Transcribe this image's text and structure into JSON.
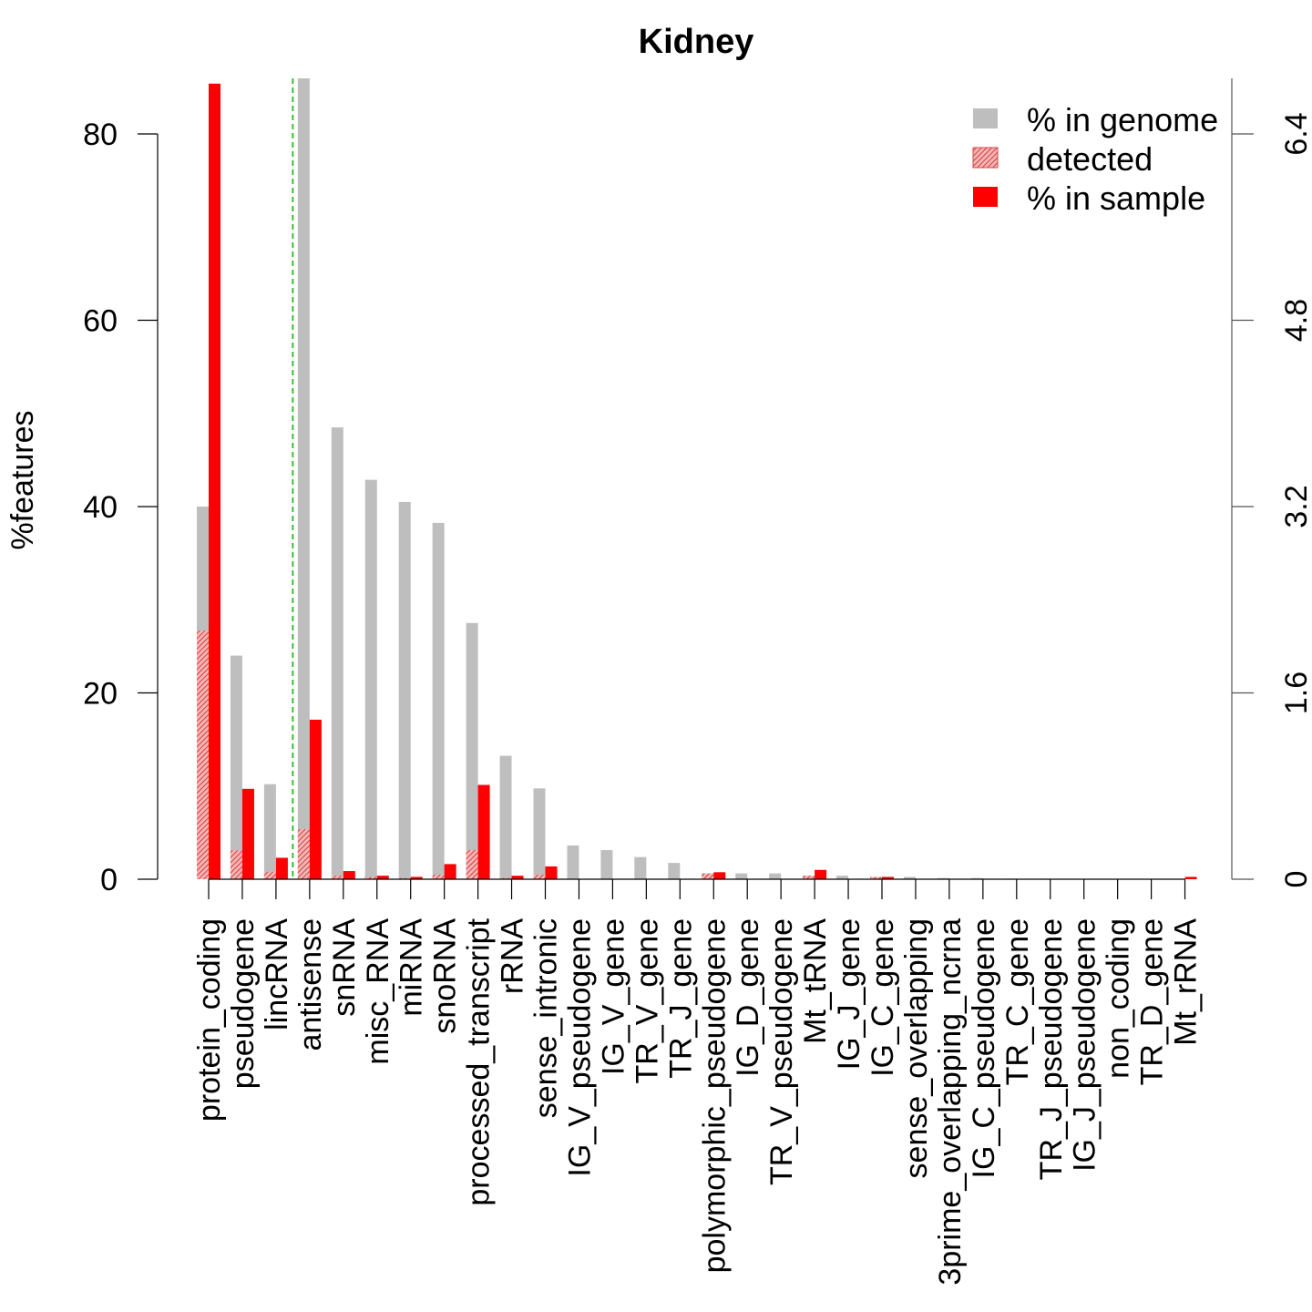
{
  "chart_data": {
    "type": "bar",
    "title": "Kidney",
    "ylabel": "%features",
    "left_axis": {
      "ylim": [
        0,
        86
      ],
      "ticks": [
        0,
        20,
        40,
        60,
        80
      ]
    },
    "right_axis": {
      "ylim": [
        0,
        6.88
      ],
      "ticks": [
        "0",
        "1.6",
        "3.2",
        "4.8",
        "6.4"
      ]
    },
    "categories": [
      "protein_coding",
      "pseudogene",
      "lincRNA",
      "antisense",
      "snRNA",
      "misc_RNA",
      "miRNA",
      "snoRNA",
      "processed_transcript",
      "rRNA",
      "sense_intronic",
      "IG_V_pseudogene",
      "IG_V_gene",
      "TR_V_gene",
      "TR_J_gene",
      "polymorphic_pseudogene",
      "IG_D_gene",
      "TR_V_pseudogene",
      "Mt_tRNA",
      "IG_J_gene",
      "IG_C_gene",
      "sense_overlapping",
      "3prime_overlapping_ncrna",
      "IG_C_pseudogene",
      "TR_C_gene",
      "TR_J_pseudogene",
      "IG_J_pseudogene",
      "non_coding",
      "TR_D_gene",
      "Mt_rRNA"
    ],
    "separator_after_index": 2,
    "series": [
      {
        "name": "% in genome",
        "color": "#bebebe",
        "axis": "left-of-separator / right-after",
        "values": [
          40.0,
          24.0,
          10.2,
          6.9,
          3.88,
          3.43,
          3.24,
          3.06,
          2.2,
          1.06,
          0.78,
          0.29,
          0.25,
          0.19,
          0.14,
          0.05,
          0.05,
          0.05,
          0.03,
          0.03,
          0.02,
          0.02,
          0.01,
          0.01,
          0.005,
          0.005,
          0.003,
          0.002,
          0.002,
          0.002
        ]
      },
      {
        "name": "detected",
        "color": "#e34040",
        "pattern": "hatched",
        "values": [
          26.7,
          3.1,
          0.8,
          0.43,
          0.03,
          0.02,
          0.01,
          0.04,
          0.25,
          0.01,
          0.04,
          0,
          0,
          0,
          0,
          0.05,
          0,
          0,
          0.03,
          0,
          0.02,
          0,
          0,
          0,
          0,
          0,
          0,
          0,
          0,
          0
        ]
      },
      {
        "name": "% in sample",
        "color": "#ff0000",
        "values": [
          85.4,
          9.7,
          2.3,
          1.37,
          0.07,
          0.03,
          0.02,
          0.13,
          0.81,
          0.03,
          0.11,
          0,
          0,
          0,
          0,
          0.06,
          0,
          0,
          0.08,
          0,
          0.02,
          0,
          0,
          0,
          0,
          0,
          0,
          0,
          0,
          0.02
        ]
      }
    ],
    "legend": {
      "position": "top-right",
      "entries": [
        "% in genome",
        "detected",
        "% in sample"
      ]
    },
    "grid": false
  }
}
